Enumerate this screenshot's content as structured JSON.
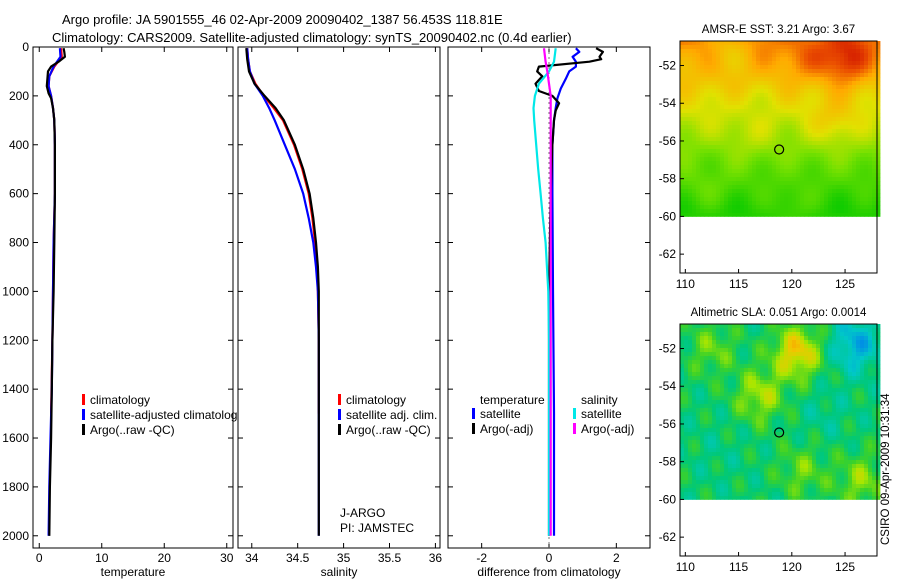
{
  "header": {
    "line1": "Argo profile: JA 5901555_46 02-Apr-2009 20090402_1387 56.453S 118.81E",
    "line2": "Climatology: CARS2009. Satellite-adjusted climatology: synTS_20090402.nc (0.4d earlier)"
  },
  "side_stamp": "CSIRO 09-Apr-2009 10:31:34",
  "chart_data": [
    {
      "id": "temperature",
      "type": "line",
      "xlabel": "temperature",
      "ylabel": "",
      "xlim": [
        -1,
        31
      ],
      "ylim": [
        2050,
        0
      ],
      "xticks": [
        0,
        10,
        20,
        30
      ],
      "xtick_labels": [
        "0",
        "10",
        "20",
        "30"
      ],
      "yticks": [
        0,
        200,
        400,
        600,
        800,
        1000,
        1200,
        1400,
        1600,
        1800,
        2000
      ],
      "ytick_labels": [
        "0",
        "200",
        "400",
        "600",
        "800",
        "1000",
        "1200",
        "1400",
        "1600",
        "1800",
        "2000"
      ],
      "legend": {
        "position": "lower-right",
        "entries": [
          "climatology",
          "satellite-adjusted climatolog",
          "Argo(..raw -QC)"
        ]
      },
      "series": [
        {
          "name": "climatology",
          "color": "#ff0000",
          "depth": [
            5,
            40,
            80,
            120,
            160,
            200,
            250,
            300,
            400,
            600,
            800,
            1000,
            1200,
            1500
          ],
          "values": [
            3.5,
            3.6,
            2.4,
            1.6,
            1.5,
            1.9,
            2.2,
            2.4,
            2.5,
            2.5,
            2.3,
            2.2,
            2.1,
            1.9
          ]
        },
        {
          "name": "satellite-adjusted climatology",
          "color": "#0000ff",
          "depth": [
            5,
            40,
            80,
            120,
            160,
            200,
            250,
            300,
            400,
            600,
            800,
            1000,
            1200,
            1400,
            1600,
            1800,
            2000
          ],
          "values": [
            3.3,
            3.4,
            2.3,
            1.6,
            1.5,
            1.9,
            2.2,
            2.4,
            2.5,
            2.5,
            2.3,
            2.2,
            2.1,
            2.0,
            1.8,
            1.6,
            1.5
          ]
        },
        {
          "name": "Argo(..raw -QC)",
          "color": "#000000",
          "depth": [
            5,
            20,
            40,
            60,
            80,
            100,
            130,
            160,
            190,
            210,
            250,
            300,
            400,
            600,
            800,
            1000,
            1200,
            1400,
            1600,
            1800,
            2000
          ],
          "values": [
            3.9,
            4.0,
            4.1,
            3.1,
            1.9,
            1.4,
            1.3,
            1.2,
            1.5,
            1.9,
            2.2,
            2.4,
            2.5,
            2.5,
            2.4,
            2.3,
            2.1,
            2.0,
            1.9,
            1.7,
            1.6
          ]
        }
      ]
    },
    {
      "id": "salinity",
      "type": "line",
      "xlabel": "salinity",
      "xlim": [
        33.85,
        36.05
      ],
      "ylim": [
        2050,
        0
      ],
      "xticks": [
        34,
        34.5,
        35,
        35.5,
        36
      ],
      "xtick_labels": [
        "34",
        "34.5",
        "35",
        "35.5",
        "36"
      ],
      "legend": {
        "position": "lower-right",
        "entries": [
          "climatology",
          "satellite adj. clim.",
          "Argo(..raw -QC)"
        ]
      },
      "float_info": [
        "J-ARGO",
        "PI: JAMSTEC"
      ],
      "series": [
        {
          "name": "climatology",
          "color": "#ff0000",
          "depth": [
            5,
            50,
            100,
            150,
            200,
            250,
            300,
            400,
            500,
            600,
            700,
            800,
            900,
            1000,
            1200,
            1500
          ],
          "values": [
            33.95,
            33.96,
            33.98,
            34.04,
            34.13,
            34.24,
            34.34,
            34.46,
            34.55,
            34.62,
            34.66,
            34.69,
            34.71,
            34.72,
            34.73,
            34.73
          ]
        },
        {
          "name": "satellite adj. clim.",
          "color": "#0000ff",
          "depth": [
            5,
            50,
            100,
            150,
            200,
            250,
            300,
            400,
            500,
            600,
            700,
            800,
            900,
            1000,
            1200,
            1400,
            1600,
            1800,
            2000
          ],
          "values": [
            33.95,
            33.96,
            33.98,
            34.03,
            34.12,
            34.19,
            34.25,
            34.36,
            34.47,
            34.56,
            34.62,
            34.67,
            34.7,
            34.72,
            34.73,
            34.73,
            34.73,
            34.73,
            34.73
          ]
        },
        {
          "name": "Argo(..raw -QC)",
          "color": "#000000",
          "depth": [
            5,
            50,
            100,
            150,
            200,
            250,
            300,
            400,
            500,
            600,
            700,
            800,
            900,
            1000,
            1200,
            1400,
            1600,
            1800,
            2000
          ],
          "values": [
            33.94,
            33.95,
            33.97,
            34.03,
            34.14,
            34.26,
            34.35,
            34.47,
            34.56,
            34.63,
            34.67,
            34.7,
            34.72,
            34.73,
            34.73,
            34.73,
            34.73,
            34.73,
            34.73
          ]
        }
      ]
    },
    {
      "id": "difference",
      "type": "line",
      "xlabel": "difference from climatology",
      "xlim": [
        -3,
        3
      ],
      "ylim": [
        2050,
        0
      ],
      "xticks": [
        -2,
        0,
        2
      ],
      "xtick_labels": [
        "-2",
        "0",
        "2"
      ],
      "legend": {
        "position": "lower-center",
        "groups": [
          {
            "title": "temperature",
            "entries": [
              "satellite",
              "Argo(-adj)"
            ]
          },
          {
            "title": "salinity",
            "entries": [
              "satellite",
              "Argo(-adj)"
            ]
          }
        ]
      },
      "series": [
        {
          "name": "temperature satellite",
          "color": "#0000ff",
          "depth": [
            5,
            20,
            40,
            60,
            80,
            100,
            130,
            170,
            210,
            250,
            300,
            400,
            600,
            1000,
            1500,
            2000
          ],
          "values": [
            0.8,
            0.9,
            0.7,
            0.8,
            0.8,
            0.6,
            0.5,
            0.35,
            0.25,
            0.2,
            0.15,
            0.1,
            0.1,
            0.12,
            0.15,
            0.15
          ]
        },
        {
          "name": "temperature Argo(-adj)",
          "color": "#000000",
          "depth": [
            5,
            20,
            40,
            50,
            60,
            80,
            100,
            120,
            150,
            180,
            200,
            230,
            260,
            300,
            400,
            600,
            1000,
            1500,
            2000
          ],
          "values": [
            1.4,
            1.6,
            1.5,
            1.55,
            1.2,
            -0.3,
            -0.35,
            -0.2,
            -0.4,
            -0.3,
            0.1,
            0.3,
            0.2,
            0.15,
            0.1,
            0.05,
            0.0,
            0.0,
            0.0
          ]
        },
        {
          "name": "salinity satellite",
          "color": "#00e8e8",
          "depth": [
            5,
            60,
            100,
            150,
            200,
            250,
            300,
            400,
            500,
            600,
            700,
            800,
            1000,
            1200,
            1500,
            2000
          ],
          "values": [
            0.2,
            0.15,
            0.0,
            -0.3,
            -0.42,
            -0.46,
            -0.44,
            -0.38,
            -0.32,
            -0.25,
            -0.18,
            -0.1,
            -0.02,
            0.0,
            0.0,
            0.0
          ]
        },
        {
          "name": "salinity Argo(-adj)",
          "color": "#ff00ff",
          "depth": [
            5,
            60,
            100,
            150,
            200,
            300,
            400,
            600,
            1000,
            1500,
            2000
          ],
          "values": [
            -0.15,
            -0.1,
            -0.05,
            0.0,
            0.05,
            0.05,
            0.05,
            0.05,
            0.05,
            0.05,
            0.05
          ]
        }
      ]
    },
    {
      "id": "sst_map",
      "type": "heatmap",
      "title": "AMSR-E SST: 3.21 Argo: 3.67",
      "xlim": [
        109.5,
        128
      ],
      "ylim": [
        -63,
        -50.7
      ],
      "xticks": [
        110,
        115,
        120,
        125
      ],
      "xtick_labels": [
        "110",
        "115",
        "120",
        "125"
      ],
      "yticks": [
        -52,
        -54,
        -56,
        -58,
        -60,
        -62
      ],
      "ytick_labels": [
        "-52",
        "-54",
        "-56",
        "-58",
        "-60",
        "-62"
      ],
      "data_extent_lat": [
        -60,
        -50.7
      ],
      "marker": {
        "lon": 118.81,
        "lat": -56.453
      },
      "blobs": [
        {
          "lon": 125,
          "lat": -51.5,
          "level": 0.95
        },
        {
          "lon": 121,
          "lat": -51.2,
          "level": 0.8
        },
        {
          "lon": 114,
          "lat": -51.5,
          "level": 0.62
        },
        {
          "lon": 124,
          "lat": -54.5,
          "level": 0.6
        },
        {
          "lon": 116,
          "lat": -55,
          "level": 0.45
        },
        {
          "lon": 112,
          "lat": -58,
          "level": 0.25
        },
        {
          "lon": 120,
          "lat": -59,
          "level": 0.2
        }
      ]
    },
    {
      "id": "sla_map",
      "type": "heatmap",
      "title": "Altimetric SLA: 0.051 Argo: 0.0014",
      "xlim": [
        109.5,
        128
      ],
      "ylim": [
        -63,
        -50.7
      ],
      "xticks": [
        110,
        115,
        120,
        125
      ],
      "xtick_labels": [
        "110",
        "115",
        "120",
        "125"
      ],
      "yticks": [
        -52,
        -54,
        -56,
        -58,
        -60,
        -62
      ],
      "ytick_labels": [
        "-52",
        "-54",
        "-56",
        "-58",
        "-60",
        "-62"
      ],
      "data_extent_lat": [
        -60,
        -50.7
      ],
      "marker": {
        "lon": 118.81,
        "lat": -56.453
      },
      "blobs": [
        {
          "lon": 126,
          "lat": -51.8,
          "level": 0.1
        },
        {
          "lon": 120.5,
          "lat": -52.2,
          "level": 0.85
        },
        {
          "lon": 112.5,
          "lat": -52,
          "level": 0.6
        },
        {
          "lon": 117,
          "lat": -54.5,
          "level": 0.7
        },
        {
          "lon": 123,
          "lat": -55.5,
          "level": 0.35
        },
        {
          "lon": 113,
          "lat": -57.5,
          "level": 0.38
        },
        {
          "lon": 121,
          "lat": -58.5,
          "level": 0.6
        },
        {
          "lon": 126.5,
          "lat": -59,
          "level": 0.65
        }
      ]
    }
  ]
}
